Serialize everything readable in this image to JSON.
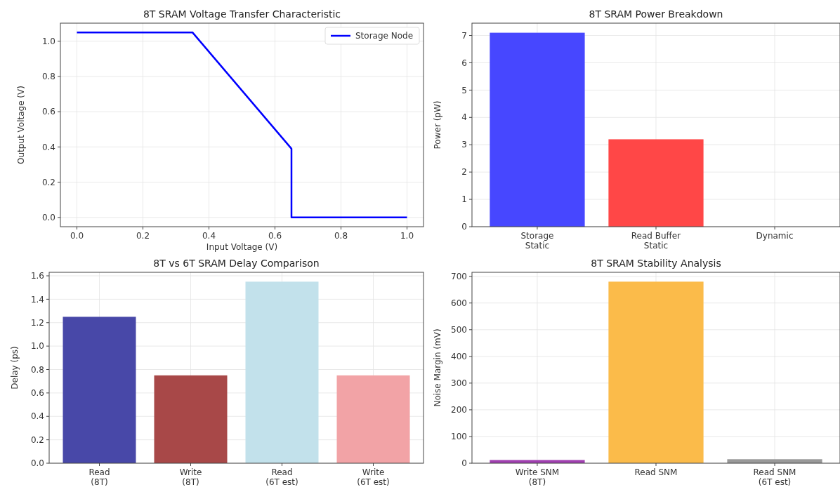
{
  "chart_data": [
    {
      "type": "line",
      "title": "8T SRAM Voltage Transfer Characteristic",
      "xlabel": "Input Voltage (V)",
      "ylabel": "Output Voltage (V)",
      "xlim": [
        -0.05,
        1.05
      ],
      "ylim": [
        -0.0525,
        1.1025
      ],
      "xticks": [
        {
          "value": 0,
          "label": "0.0"
        },
        {
          "value": 0.2,
          "label": "0.2"
        },
        {
          "value": 0.4,
          "label": "0.4"
        },
        {
          "value": 0.6,
          "label": "0.6"
        },
        {
          "value": 0.8,
          "label": "0.8"
        },
        {
          "value": 1,
          "label": "1.0"
        }
      ],
      "yticks": [
        {
          "value": 0,
          "label": "0.0"
        },
        {
          "value": 0.2,
          "label": "0.2"
        },
        {
          "value": 0.4,
          "label": "0.4"
        },
        {
          "value": 0.6,
          "label": "0.6"
        },
        {
          "value": 0.8,
          "label": "0.8"
        },
        {
          "value": 1,
          "label": "1.0"
        }
      ],
      "grid": true,
      "legend": "top right",
      "series": [
        {
          "name": "Storage Node",
          "color": "#0000ff",
          "x": [
            0,
            0.35,
            0.65,
            0.65,
            1
          ],
          "values": [
            1.05,
            1.05,
            0.39,
            0,
            0
          ]
        }
      ]
    },
    {
      "type": "bar",
      "title": "8T SRAM Power Breakdown",
      "ylabel": "Power (pW)",
      "categories": [
        "Storage\nStatic",
        "Read Buffer\nStatic",
        "Dynamic"
      ],
      "values": [
        7.1,
        3.2,
        0
      ],
      "colors": [
        "#4747ff",
        "#ff4747",
        "#47ff47"
      ],
      "ylim": [
        0,
        7.45
      ],
      "yticks": [
        0,
        1,
        2,
        3,
        4,
        5,
        6,
        7
      ],
      "grid": true
    },
    {
      "type": "bar",
      "title": "8T vs 6T SRAM Delay Comparison",
      "ylabel": "Delay (ps)",
      "categories": [
        "Read\n(8T)",
        "Write\n(8T)",
        "Read\n(6T est)",
        "Write\n(6T est)"
      ],
      "values": [
        1.25,
        0.75,
        1.55,
        0.75
      ],
      "colors": [
        "#4848a8",
        "#a84848",
        "#c2e1eb",
        "#f2a3a6"
      ],
      "ylim": [
        0,
        1.63
      ],
      "yticks": [
        {
          "value": 0,
          "label": "0.0"
        },
        {
          "value": 0.2,
          "label": "0.2"
        },
        {
          "value": 0.4,
          "label": "0.4"
        },
        {
          "value": 0.6,
          "label": "0.6"
        },
        {
          "value": 0.8,
          "label": "0.8"
        },
        {
          "value": 1,
          "label": "1.0"
        },
        {
          "value": 1.2,
          "label": "1.2"
        },
        {
          "value": 1.4,
          "label": "1.4"
        },
        {
          "value": 1.6,
          "label": "1.6"
        }
      ],
      "grid": true
    },
    {
      "type": "bar",
      "title": "8T SRAM Stability Analysis",
      "ylabel": "Noise Margin (mV)",
      "categories": [
        "Write SNM\n(8T)",
        "Read SNM",
        "Read SNM\n(6T est)"
      ],
      "values": [
        12,
        680,
        15
      ],
      "colors": [
        "#a040b0",
        "#fbbb4a",
        "#999999"
      ],
      "ylim": [
        0,
        715
      ],
      "yticks": [
        0,
        100,
        200,
        300,
        400,
        500,
        600,
        700
      ],
      "grid": true
    }
  ]
}
